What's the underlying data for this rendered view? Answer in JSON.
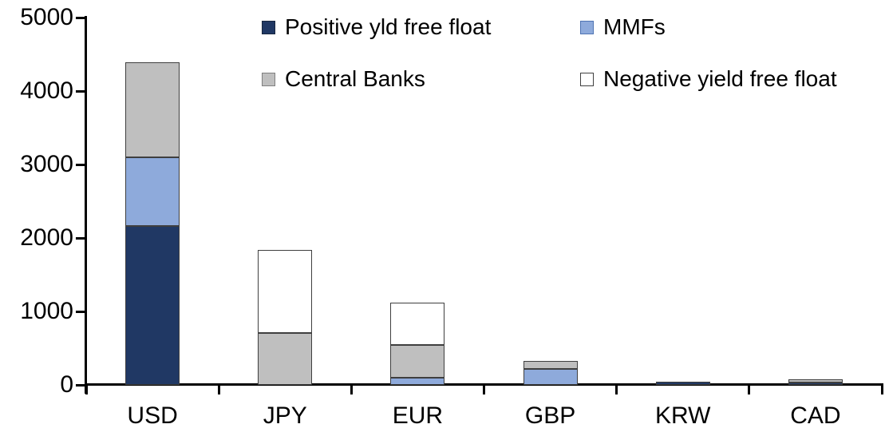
{
  "chart_data": {
    "type": "bar",
    "stacked": true,
    "title": "",
    "xlabel": "",
    "ylabel": "",
    "grid": false,
    "legend_position": "top",
    "legend_columns": 2,
    "categories": [
      "USD",
      "JPY",
      "EUR",
      "GBP",
      "KRW",
      "CAD"
    ],
    "series": [
      {
        "name": "Positive yld free float",
        "color": "#203864",
        "swatch_border": "#17263f",
        "values": [
          2160,
          0,
          0,
          0,
          45,
          30
        ]
      },
      {
        "name": "MMFs",
        "color": "#8EAADB",
        "swatch_border": "#4f74b3",
        "values": [
          940,
          0,
          100,
          220,
          0,
          0
        ]
      },
      {
        "name": "Central Banks",
        "color": "#BFBFBF",
        "swatch_border": "#7f7f7f",
        "values": [
          1290,
          710,
          440,
          110,
          0,
          45
        ]
      },
      {
        "name": "Negative yield free float",
        "color": "#FFFFFF",
        "swatch_border": "#404040",
        "values": [
          0,
          1130,
          580,
          0,
          0,
          0
        ]
      }
    ],
    "totals": [
      4390,
      1840,
      1120,
      330,
      45,
      75
    ],
    "ylim": [
      0,
      5000
    ],
    "yticks": [
      0,
      1000,
      2000,
      3000,
      4000,
      5000
    ],
    "axis_color": "#000000"
  }
}
